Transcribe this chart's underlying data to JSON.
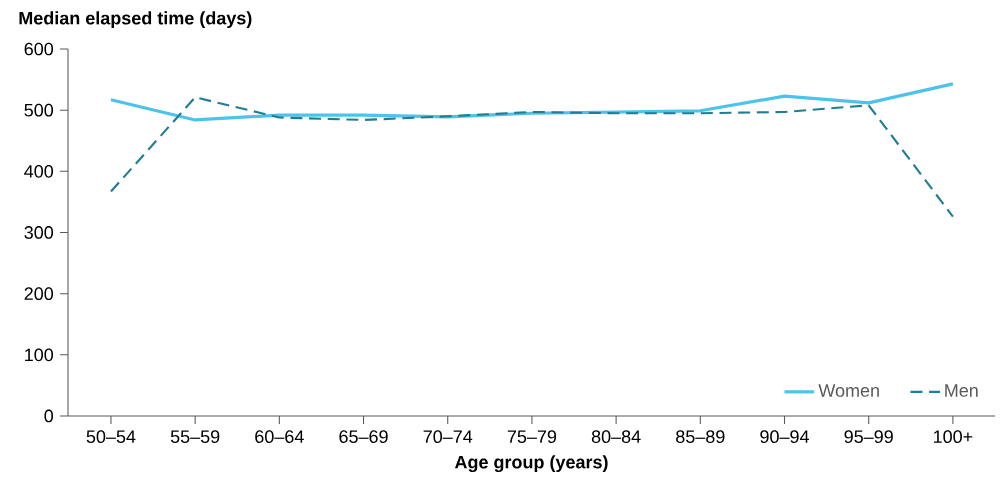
{
  "chart_data": {
    "type": "line",
    "ylabel": "Median elapsed time (days)",
    "xlabel": "Age group (years)",
    "categories": [
      "50–54",
      "55–59",
      "60–64",
      "65–69",
      "70–74",
      "75–79",
      "80–84",
      "85–89",
      "90–94",
      "95–99",
      "100+"
    ],
    "series": [
      {
        "name": "Women",
        "color": "#4dc3ec",
        "line_style": "solid",
        "values": [
          517,
          484,
          492,
          492,
          489,
          495,
          497,
          499,
          523,
          512,
          543
        ]
      },
      {
        "name": "Men",
        "color": "#1f7d94",
        "line_style": "dashed",
        "values": [
          367,
          521,
          488,
          484,
          490,
          497,
          495,
          495,
          497,
          508,
          326
        ]
      }
    ],
    "ylim": [
      0,
      600
    ],
    "yticks": [
      0,
      100,
      200,
      300,
      400,
      500,
      600
    ],
    "grid": false,
    "legend": "bottom right",
    "marker": "none"
  }
}
